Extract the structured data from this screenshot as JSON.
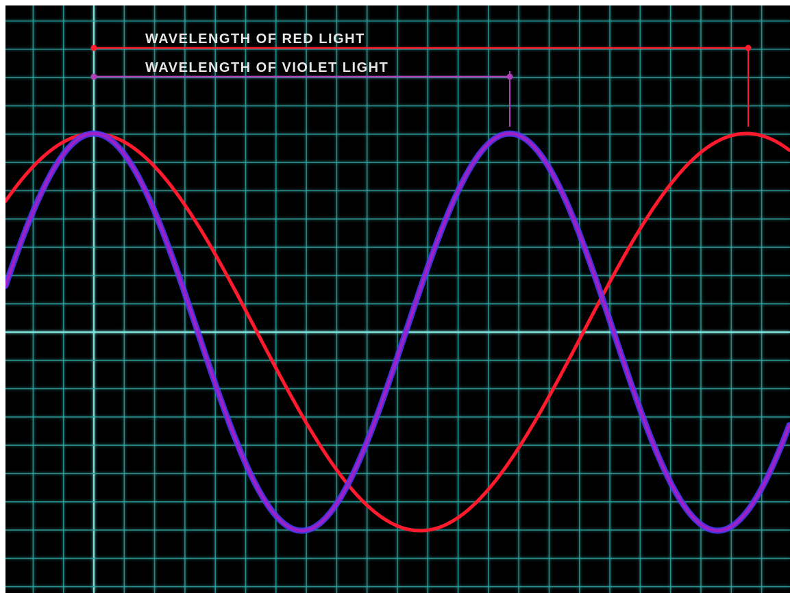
{
  "labels": {
    "red": "WAVELENGTH OF RED LIGHT",
    "violet": "WAVELENGTH OF VIOLET LIGHT"
  },
  "colors": {
    "background": "#000000",
    "grid": "#2fa6a3",
    "grid_major": "#7fe6e2",
    "red_wave": "#ff1a2e",
    "violet_wave": "#a020c8",
    "violet_glow": "#4a3cff",
    "red_marker": "#ff1a2e",
    "violet_marker": "#b040b8"
  },
  "waves": {
    "red_wavelength_grid_units": 21.5,
    "violet_wavelength_grid_units": 13.7,
    "red_to_violet_wavelength_ratio": 1.57
  }
}
